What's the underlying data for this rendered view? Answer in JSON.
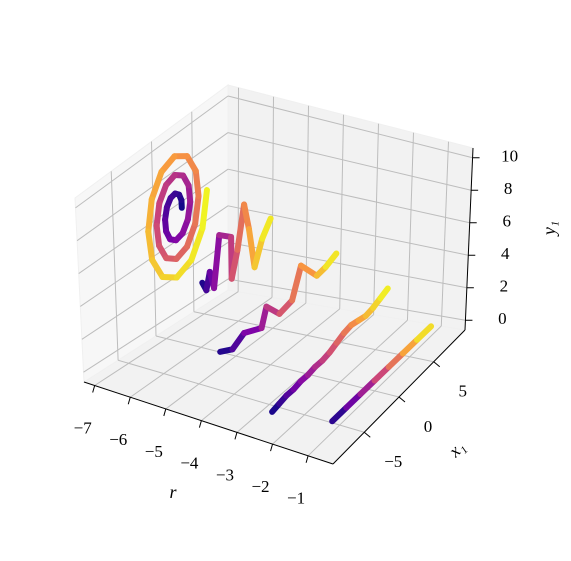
{
  "chart_data": {
    "type": "line3d",
    "xlabel": "r",
    "ylabel": "x₁",
    "zlabel": "y₁",
    "xlim": [
      -7.3,
      -0.3
    ],
    "ylim": [
      -9.5,
      9.5
    ],
    "zlim": [
      -0.6,
      10.6
    ],
    "xticks": [
      {
        "value": -7,
        "label": "−7"
      },
      {
        "value": -6,
        "label": "−6"
      },
      {
        "value": -5,
        "label": "−5"
      },
      {
        "value": -4,
        "label": "−4"
      },
      {
        "value": -3,
        "label": "−3"
      },
      {
        "value": -2,
        "label": "−2"
      },
      {
        "value": -1,
        "label": "−1"
      }
    ],
    "yticks": [
      {
        "value": -5,
        "label": "−5"
      },
      0,
      5
    ],
    "zticks": [
      0,
      2,
      4,
      6,
      8,
      10
    ],
    "grid": true,
    "colormap": [
      "#0d0887",
      "#7e03a8",
      "#cc4778",
      "#f89540",
      "#f0f921"
    ],
    "series": [
      {
        "r": -7,
        "x1": [
          2.3,
          2.27,
          1.99,
          1.5,
          0.92,
          0.43,
          0.17,
          0.27,
          0.75,
          1.5,
          2.35,
          3.04,
          3.37,
          3.2,
          2.52,
          1.5,
          0.39,
          -0.5,
          -0.9,
          -0.66,
          0.21,
          1.5,
          2.88,
          3.96,
          4.43,
          4.12,
          3.06,
          1.5,
          -0.15,
          -1.43,
          -1.97,
          -1.58,
          -0.32,
          1.5,
          3.41,
          4.89,
          5.5
        ],
        "y1": [
          6.2,
          6.64,
          7.05,
          7.27,
          7.2,
          6.82,
          6.2,
          5.49,
          4.89,
          4.6,
          4.74,
          5.31,
          6.2,
          7.18,
          7.97,
          8.33,
          8.12,
          7.36,
          6.2,
          4.96,
          3.97,
          3.53,
          3.81,
          4.78,
          6.2,
          7.71,
          8.89,
          9.4,
          9.05,
          7.89,
          6.2,
          4.42,
          3.05,
          2.47,
          2.89,
          4.25,
          6.2
        ]
      },
      {
        "r": -5.5,
        "x1": [
          -1.9,
          -1.4,
          -0.9,
          -0.4,
          0.4,
          1.9,
          1.9,
          2.7,
          3.6,
          4.2,
          4.9,
          5.9,
          7.0
        ],
        "y1": [
          4.0,
          3.4,
          4.3,
          3.2,
          6.0,
          5.4,
          3.0,
          4.4,
          6.7,
          5.1,
          2.7,
          4.0,
          4.8
        ]
      },
      {
        "r": -4,
        "x1": [
          -6.6,
          -5,
          -3.4,
          -1.1,
          -0.4,
          1.3,
          3,
          4.2,
          6.3,
          7.5,
          8.9
        ],
        "y1": [
          2.4,
          2.0,
          2.4,
          1.9,
          2.9,
          1.9,
          2.1,
          3.7,
          2.4,
          2.5,
          2.8
        ]
      },
      {
        "r": -2.5,
        "x1": [
          -7,
          -6,
          -5,
          -4,
          -3,
          -2,
          -1,
          0,
          1,
          2,
          3,
          4,
          5,
          6,
          7,
          8,
          9
        ],
        "y1": [
          0,
          0.1,
          0.2,
          0.2,
          0.3,
          0.3,
          0.4,
          0.4,
          0.5,
          0.7,
          0.9,
          1.0,
          0.9,
          0.8,
          0.9,
          1.1,
          1.3
        ]
      },
      {
        "r": -1,
        "x1": [
          -6,
          -4,
          -2,
          0,
          2,
          4,
          6,
          8
        ],
        "y1": [
          0,
          0,
          0,
          0,
          0,
          0,
          0,
          0
        ]
      }
    ]
  }
}
